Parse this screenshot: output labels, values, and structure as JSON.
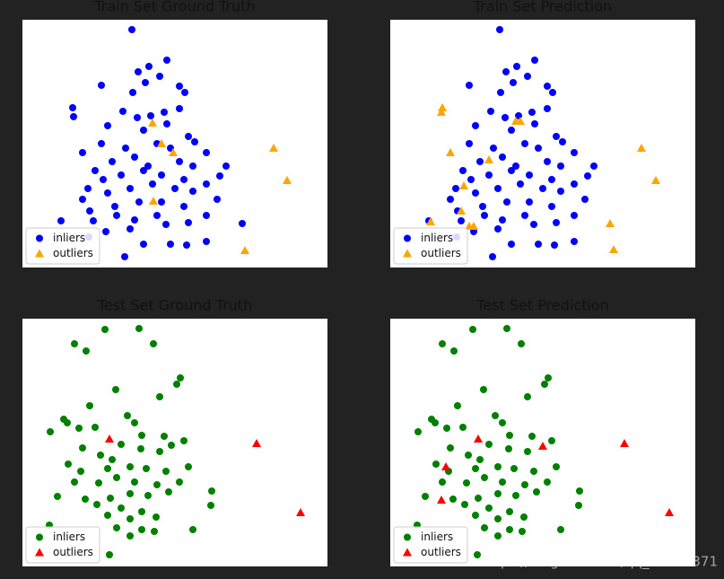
{
  "chart_data": [
    {
      "type": "scatter",
      "title": "Train Set Ground Truth",
      "xlim": [
        0,
        340
      ],
      "ylim": [
        0,
        276
      ],
      "legend": "lower left",
      "series": [
        {
          "name": "inliers",
          "color": "#0000ff",
          "marker": "circle",
          "x": [
            122,
            161,
            141,
            129,
            153,
            137,
            88,
            175,
            181,
            123,
            56,
            57,
            175,
            112,
            128,
            158,
            143,
            161,
            95,
            135,
            185,
            88,
            67,
            115,
            150,
            165,
            192,
            205,
            227,
            81,
            100,
            125,
            140,
            175,
            190,
            220,
            73,
            90,
            110,
            135,
            155,
            180,
            205,
            67,
            95,
            120,
            145,
            170,
            190,
            217,
            75,
            103,
            130,
            155,
            180,
            205,
            43,
            79,
            105,
            125,
            150,
            245,
            93,
            120,
            160,
            185,
            135,
            165,
            183,
            205,
            114,
            74
          ],
          "y": [
            265,
            231,
            224,
            218,
            213,
            206,
            203,
            202,
            195,
            195,
            178,
            168,
            177,
            174,
            167,
            173,
            169,
            160,
            158,
            153,
            146,
            138,
            128,
            133,
            138,
            133,
            140,
            128,
            113,
            108,
            118,
            123,
            113,
            118,
            113,
            102,
            88,
            98,
            103,
            108,
            103,
            98,
            93,
            76,
            83,
            88,
            93,
            88,
            85,
            76,
            63,
            68,
            73,
            73,
            68,
            58,
            52,
            52,
            58,
            53,
            58,
            49,
            40,
            43,
            48,
            50,
            26,
            26,
            25,
            29,
            12,
            34
          ]
        },
        {
          "name": "outliers",
          "color": "#ffa500",
          "marker": "triangle",
          "x": [
            280,
            295,
            248,
            155,
            168,
            145,
            146
          ],
          "y": [
            133,
            97,
            19,
            138,
            128,
            161,
            74
          ]
        }
      ]
    },
    {
      "type": "scatter",
      "title": "Train Set Prediction",
      "xlim": [
        0,
        340
      ],
      "ylim": [
        0,
        276
      ],
      "legend": "lower left",
      "series": [
        {
          "name": "inliers",
          "color": "#0000ff",
          "marker": "circle",
          "x": [
            122,
            161,
            141,
            129,
            153,
            137,
            88,
            175,
            181,
            123,
            175,
            112,
            128,
            158,
            143,
            161,
            95,
            135,
            185,
            88,
            115,
            150,
            165,
            192,
            205,
            227,
            81,
            100,
            125,
            140,
            175,
            190,
            220,
            73,
            90,
            110,
            135,
            155,
            180,
            205,
            67,
            95,
            120,
            145,
            170,
            190,
            217,
            75,
            103,
            130,
            155,
            180,
            205,
            43,
            79,
            105,
            125,
            150,
            93,
            120,
            160,
            185,
            135,
            165,
            183,
            205,
            114,
            74
          ],
          "y": [
            265,
            231,
            224,
            218,
            213,
            206,
            203,
            202,
            195,
            195,
            177,
            174,
            167,
            173,
            169,
            160,
            158,
            153,
            146,
            138,
            133,
            138,
            133,
            140,
            128,
            113,
            108,
            118,
            123,
            113,
            118,
            113,
            102,
            88,
            98,
            103,
            108,
            103,
            98,
            93,
            76,
            83,
            88,
            93,
            88,
            85,
            76,
            63,
            68,
            73,
            73,
            68,
            58,
            52,
            52,
            58,
            53,
            58,
            40,
            43,
            48,
            50,
            26,
            26,
            25,
            29,
            12,
            34
          ]
        },
        {
          "name": "outliers",
          "color": "#ffa500",
          "marker": "triangle",
          "x": [
            58,
            57,
            67,
            82,
            45,
            79,
            88,
            93,
            110,
            140,
            145,
            280,
            296,
            245,
            249
          ],
          "y": [
            178,
            173,
            128,
            91,
            51,
            63,
            46,
            46,
            120,
            163,
            163,
            133,
            97,
            49,
            20
          ]
        }
      ]
    },
    {
      "type": "scatter",
      "title": "Test Set Ground Truth",
      "xlim": [
        0,
        340
      ],
      "ylim": [
        0,
        276
      ],
      "legend": "lower left",
      "series": [
        {
          "name": "inliers",
          "color": "#008000",
          "marker": "circle",
          "x": [
            92,
            130,
            58,
            71,
            146,
            176,
            172,
            153,
            104,
            75,
            46,
            50,
            117,
            31,
            63,
            81,
            125,
            133,
            158,
            166,
            180,
            67,
            110,
            132,
            87,
            100,
            153,
            51,
            65,
            95,
            120,
            138,
            160,
            185,
            58,
            85,
            105,
            125,
            150,
            175,
            211,
            39,
            70,
            98,
            120,
            140,
            163,
            210,
            83,
            110,
            133,
            95,
            120,
            149,
            30,
            105,
            133,
            190,
            120,
            97,
            147
          ],
          "y": [
            264,
            265,
            248,
            240,
            248,
            210,
            203,
            189,
            197,
            179,
            164,
            160,
            168,
            150,
            154,
            155,
            160,
            146,
            145,
            135,
            140,
            132,
            136,
            131,
            124,
            119,
            128,
            114,
            106,
            109,
            111,
            109,
            106,
            111,
            94,
            93,
            99,
            94,
            91,
            94,
            84,
            78,
            75,
            76,
            81,
            79,
            83,
            68,
            69,
            65,
            61,
            57,
            53,
            55,
            46,
            43,
            41,
            41,
            34,
            13,
            39
          ]
        },
        {
          "name": "outliers",
          "color": "#ff0000",
          "marker": "triangle",
          "x": [
            261,
            310,
            97
          ],
          "y": [
            137,
            60,
            142
          ]
        }
      ]
    },
    {
      "type": "scatter",
      "title": "Test Set Prediction",
      "xlim": [
        0,
        340
      ],
      "ylim": [
        0,
        276
      ],
      "legend": "lower left",
      "series": [
        {
          "name": "inliers",
          "color": "#008000",
          "marker": "circle",
          "x": [
            92,
            130,
            58,
            71,
            146,
            176,
            172,
            153,
            104,
            75,
            46,
            50,
            117,
            31,
            63,
            81,
            125,
            133,
            158,
            180,
            67,
            110,
            132,
            87,
            100,
            153,
            51,
            65,
            95,
            120,
            138,
            160,
            185,
            58,
            85,
            105,
            125,
            150,
            175,
            211,
            39,
            70,
            98,
            120,
            140,
            163,
            210,
            83,
            110,
            133,
            95,
            120,
            149,
            30,
            105,
            133,
            190,
            120,
            97,
            147
          ],
          "y": [
            264,
            265,
            248,
            240,
            248,
            210,
            203,
            189,
            197,
            179,
            164,
            160,
            168,
            150,
            154,
            155,
            160,
            146,
            145,
            140,
            132,
            136,
            131,
            124,
            119,
            128,
            114,
            106,
            109,
            111,
            109,
            106,
            111,
            94,
            93,
            99,
            94,
            91,
            94,
            84,
            78,
            75,
            76,
            81,
            79,
            83,
            68,
            69,
            65,
            61,
            57,
            53,
            55,
            46,
            43,
            41,
            41,
            34,
            13,
            39
          ]
        },
        {
          "name": "outliers",
          "color": "#ff0000",
          "marker": "triangle",
          "x": [
            261,
            311,
            98,
            170,
            62,
            57
          ],
          "y": [
            137,
            60,
            142,
            134,
            111,
            74
          ]
        }
      ]
    }
  ],
  "watermark": "https://blog.csdn.net/qq_35147371"
}
